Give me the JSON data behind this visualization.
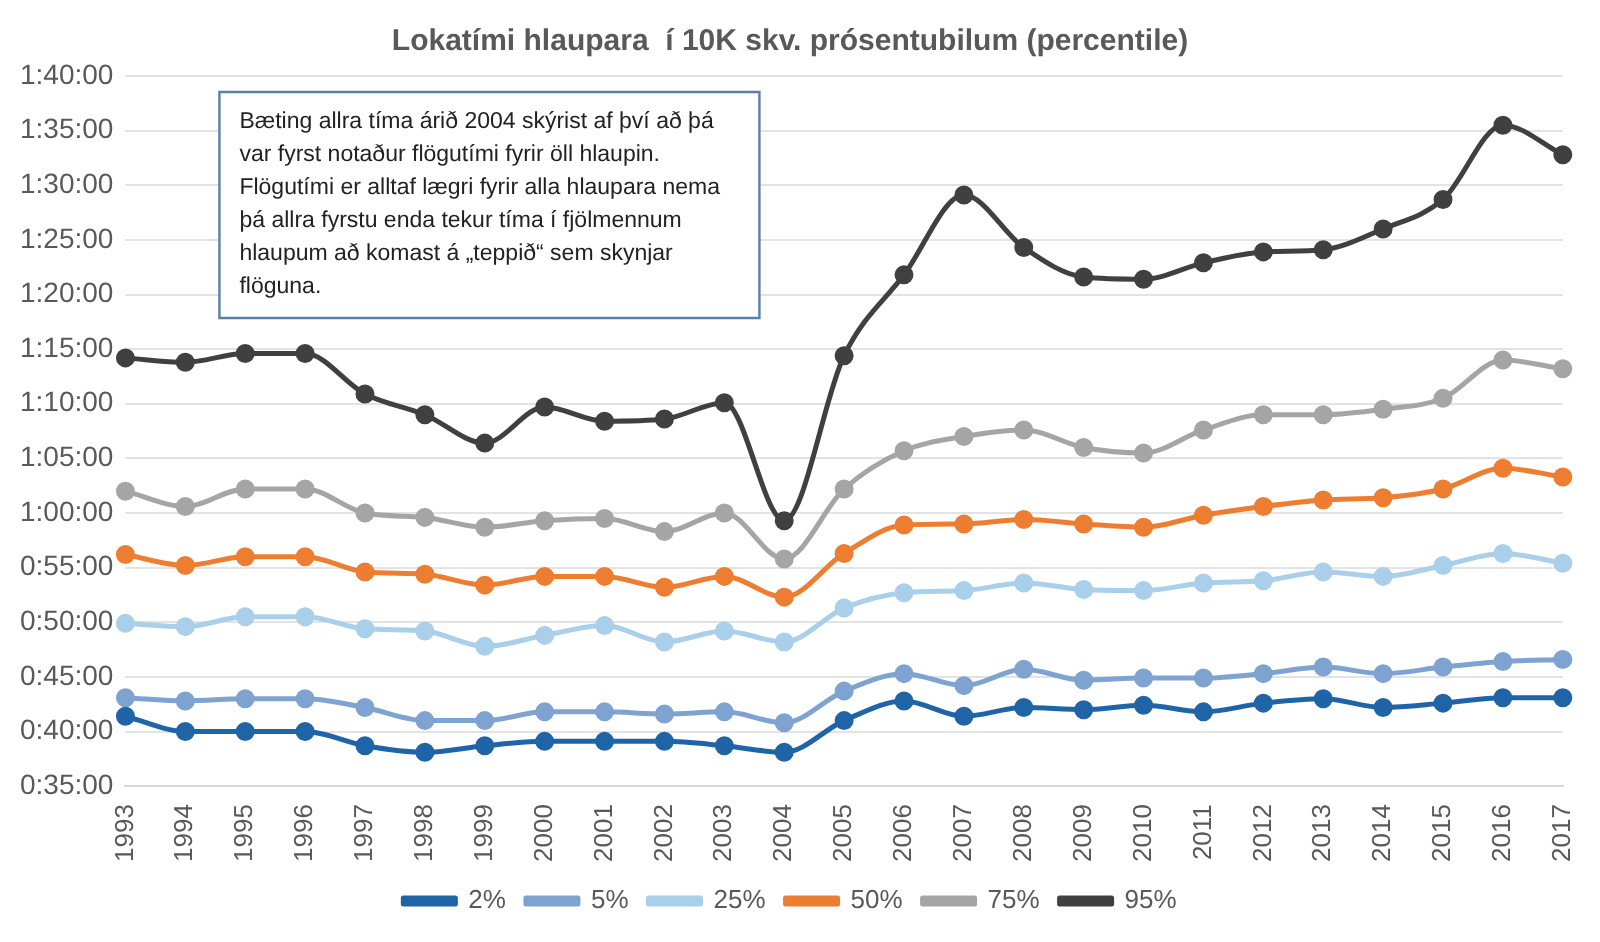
{
  "chart_data": {
    "type": "line",
    "title": "Lokatími hlaupara  í 10K skv. prósentubilum (percentile)",
    "categories": [
      "1993",
      "1994",
      "1995",
      "1996",
      "1997",
      "1998",
      "1999",
      "2000",
      "2001",
      "2002",
      "2003",
      "2004",
      "2005",
      "2006",
      "2007",
      "2008",
      "2009",
      "2010",
      "2011",
      "2012",
      "2013",
      "2014",
      "2015",
      "2016",
      "2017"
    ],
    "series": [
      {
        "name": "2%",
        "color": "#1f64a6",
        "values": [
          41.4,
          40.0,
          40.0,
          40.0,
          38.7,
          38.1,
          38.7,
          39.1,
          39.1,
          39.1,
          38.7,
          38.1,
          41.0,
          42.8,
          41.4,
          42.2,
          42.0,
          42.4,
          41.8,
          42.6,
          43.0,
          42.2,
          42.6,
          43.1,
          43.1
        ]
      },
      {
        "name": "5%",
        "color": "#7fa3d1",
        "values": [
          43.1,
          42.8,
          43.0,
          43.0,
          42.2,
          41.0,
          41.0,
          41.8,
          41.8,
          41.6,
          41.8,
          40.8,
          43.7,
          45.3,
          44.2,
          45.7,
          44.7,
          44.9,
          44.9,
          45.3,
          45.9,
          45.3,
          45.9,
          46.4,
          46.6
        ]
      },
      {
        "name": "25%",
        "color": "#a9cfea",
        "values": [
          49.9,
          49.6,
          50.5,
          50.5,
          49.4,
          49.2,
          47.8,
          48.8,
          49.7,
          48.2,
          49.2,
          48.2,
          51.3,
          52.7,
          52.9,
          53.6,
          53.0,
          52.9,
          53.6,
          53.8,
          54.6,
          54.2,
          55.2,
          56.3,
          55.4
        ]
      },
      {
        "name": "50%",
        "color": "#ed7d31",
        "values": [
          56.2,
          55.2,
          56.0,
          56.0,
          54.6,
          54.4,
          53.4,
          54.2,
          54.2,
          53.2,
          54.2,
          52.3,
          56.3,
          58.9,
          59.0,
          59.4,
          59.0,
          58.7,
          59.8,
          60.6,
          61.2,
          61.4,
          62.2,
          64.1,
          63.3
        ]
      },
      {
        "name": "75%",
        "color": "#a5a5a5",
        "values": [
          62.0,
          60.6,
          62.2,
          62.2,
          60.0,
          59.6,
          58.7,
          59.3,
          59.5,
          58.3,
          60.0,
          55.8,
          62.2,
          65.7,
          67.0,
          67.6,
          66.0,
          65.5,
          67.6,
          69.0,
          69.0,
          69.5,
          70.5,
          74.0,
          73.2
        ]
      },
      {
        "name": "95%",
        "color": "#404040",
        "values": [
          74.2,
          73.8,
          74.6,
          74.6,
          70.9,
          69.0,
          66.4,
          69.7,
          68.4,
          68.6,
          70.1,
          59.3,
          74.4,
          81.8,
          89.1,
          84.3,
          81.6,
          81.4,
          82.9,
          83.9,
          84.1,
          86.0,
          88.7,
          95.5,
          92.8
        ]
      }
    ],
    "ylim": [
      35,
      100
    ],
    "yticks": [
      {
        "value": 35,
        "label": "0:35:00"
      },
      {
        "value": 40,
        "label": "0:40:00"
      },
      {
        "value": 45,
        "label": "0:45:00"
      },
      {
        "value": 50,
        "label": "0:50:00"
      },
      {
        "value": 55,
        "label": "0:55:00"
      },
      {
        "value": 60,
        "label": "1:00:00"
      },
      {
        "value": 65,
        "label": "1:05:00"
      },
      {
        "value": 70,
        "label": "1:10:00"
      },
      {
        "value": 75,
        "label": "1:15:00"
      },
      {
        "value": 80,
        "label": "1:20:00"
      },
      {
        "value": 85,
        "label": "1:25:00"
      },
      {
        "value": 90,
        "label": "1:30:00"
      },
      {
        "value": 95,
        "label": "1:35:00"
      },
      {
        "value": 100,
        "label": "1:40:00"
      }
    ],
    "grid": "y",
    "legend": "bottom",
    "marker": "circle",
    "line_style": "solid",
    "annotations": [
      "Bæting allra tíma árið 2004 skýrist af því að þá var fyrst notaður flögutími fyrir öll hlaupin. Flögutími er alltaf lægri fyrir alla hlaupara nema þá allra fyrstu enda tekur tíma í fjölmennum hlaupum að komast á „teppið“ sem skynjar flöguna."
    ]
  }
}
